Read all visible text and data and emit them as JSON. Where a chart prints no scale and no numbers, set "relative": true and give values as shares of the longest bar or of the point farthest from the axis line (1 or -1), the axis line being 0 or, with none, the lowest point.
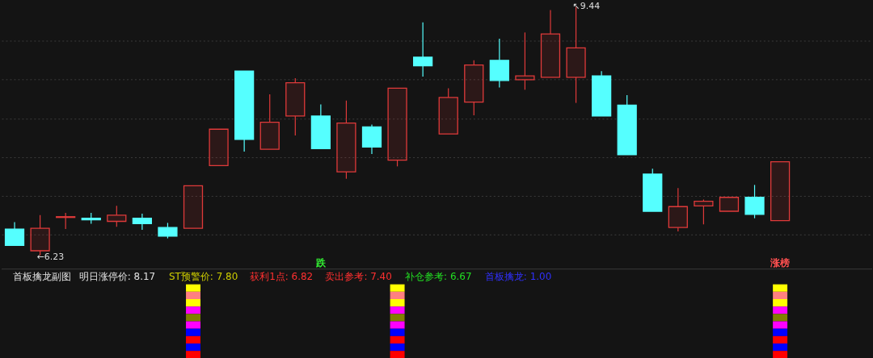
{
  "chart_data": [
    {
      "type": "candlestick",
      "categories": [
        null,
        null,
        null,
        null,
        null,
        null,
        null,
        null,
        null,
        null,
        null,
        null,
        null,
        null,
        null,
        null,
        null,
        null,
        null,
        null,
        null,
        null,
        null,
        null,
        null,
        null,
        null,
        null,
        null,
        null,
        null
      ],
      "ohlc": [
        [
          6.57,
          6.66,
          6.36,
          6.36
        ],
        [
          6.29,
          6.75,
          6.23,
          6.58
        ],
        [
          6.72,
          6.78,
          6.57,
          6.73
        ],
        [
          6.71,
          6.78,
          6.64,
          6.69
        ],
        [
          6.67,
          6.87,
          6.6,
          6.75
        ],
        [
          6.71,
          6.77,
          6.56,
          6.64
        ],
        [
          6.59,
          6.65,
          6.45,
          6.48
        ],
        [
          6.58,
          7.13,
          6.58,
          7.13
        ],
        [
          7.39,
          7.86,
          7.39,
          7.86
        ],
        [
          8.61,
          8.61,
          7.57,
          7.73
        ],
        [
          7.6,
          8.31,
          7.6,
          7.95
        ],
        [
          8.03,
          8.52,
          7.78,
          8.46
        ],
        [
          8.03,
          8.18,
          7.61,
          7.61
        ],
        [
          7.31,
          8.23,
          7.22,
          7.94
        ],
        [
          7.89,
          7.92,
          7.54,
          7.63
        ],
        [
          7.46,
          8.39,
          7.38,
          8.39
        ],
        [
          8.79,
          9.24,
          8.54,
          8.68
        ],
        [
          7.8,
          8.39,
          7.8,
          8.27
        ],
        [
          8.21,
          8.75,
          8.04,
          8.69
        ],
        [
          8.75,
          9.03,
          8.4,
          8.49
        ],
        [
          8.5,
          9.11,
          8.37,
          8.55
        ],
        [
          8.53,
          9.4,
          8.53,
          9.09
        ],
        [
          8.53,
          9.44,
          8.2,
          8.91
        ],
        [
          8.55,
          8.61,
          8.03,
          8.03
        ],
        [
          8.17,
          8.3,
          7.53,
          7.53
        ],
        [
          7.28,
          7.35,
          6.8,
          6.8
        ],
        [
          6.59,
          7.1,
          6.54,
          6.86
        ],
        [
          6.87,
          6.95,
          6.63,
          6.93
        ],
        [
          6.8,
          6.98,
          6.8,
          6.98
        ],
        [
          6.98,
          7.14,
          6.71,
          6.76
        ],
        [
          6.68,
          7.44,
          6.68,
          7.44
        ]
      ],
      "colors": [
        "#55ffff",
        "#e03a3a",
        "#e03a3a",
        "#55ffff",
        "#e03a3a",
        "#55ffff",
        "#55ffff",
        "#e03a3a",
        "#e03a3a",
        "#55ffff",
        "#e03a3a",
        "#e03a3a",
        "#55ffff",
        "#e03a3a",
        "#55ffff",
        "#e03a3a",
        "#55ffff",
        "#e03a3a",
        "#e03a3a",
        "#55ffff",
        "#e03a3a",
        "#e03a3a",
        "#e03a3a",
        "#55ffff",
        "#55ffff",
        "#55ffff",
        "#e03a3a",
        "#e03a3a",
        "#e03a3a",
        "#55ffff",
        "#e03a3a"
      ],
      "yticks": [
        {
          "value": 6.5,
          "label": null
        },
        {
          "value": 7.0,
          "label": null
        },
        {
          "value": 7.5,
          "label": null
        },
        {
          "value": 8.0,
          "label": null
        },
        {
          "value": 8.5,
          "label": null
        },
        {
          "value": 9.0,
          "label": null
        }
      ],
      "grid": "y",
      "annotations": [
        "←6.23",
        "↖9.44",
        "跌",
        "涨榜"
      ]
    },
    {
      "type": "bar",
      "stacked": true,
      "relative": true,
      "title": "首板擒龙副图",
      "categories": [
        null,
        null,
        null,
        null,
        null,
        null,
        null,
        null,
        null,
        null,
        null,
        null,
        null,
        null,
        null,
        null,
        null,
        null,
        null,
        null,
        null,
        null,
        null,
        null,
        null,
        null,
        null,
        null,
        null,
        null,
        null
      ],
      "annotations": [
        "明日涨停价: 8.17",
        "ST预警价: 7.80",
        "获利1点: 6.82",
        "卖出参考: 7.40",
        "补仓参考: 6.67",
        "首板擒龙: 1.00"
      ],
      "series": [
        {
          "color": "#ffff00",
          "values": [
            null,
            null,
            null,
            null,
            null,
            null,
            null,
            0.1,
            null,
            null,
            null,
            null,
            null,
            null,
            null,
            0.1,
            null,
            null,
            null,
            null,
            null,
            null,
            null,
            null,
            null,
            null,
            null,
            null,
            null,
            null,
            0.1
          ]
        },
        {
          "color": "#ff8080",
          "values": [
            null,
            null,
            null,
            null,
            null,
            null,
            null,
            0.1,
            null,
            null,
            null,
            null,
            null,
            null,
            null,
            0.1,
            null,
            null,
            null,
            null,
            null,
            null,
            null,
            null,
            null,
            null,
            null,
            null,
            null,
            null,
            0.1
          ]
        },
        {
          "color": "#ffff00",
          "values": [
            null,
            null,
            null,
            null,
            null,
            null,
            null,
            0.1,
            null,
            null,
            null,
            null,
            null,
            null,
            null,
            0.1,
            null,
            null,
            null,
            null,
            null,
            null,
            null,
            null,
            null,
            null,
            null,
            null,
            null,
            null,
            0.1
          ]
        },
        {
          "color": "#ff00ff",
          "values": [
            null,
            null,
            null,
            null,
            null,
            null,
            null,
            0.1,
            null,
            null,
            null,
            null,
            null,
            null,
            null,
            0.1,
            null,
            null,
            null,
            null,
            null,
            null,
            null,
            null,
            null,
            null,
            null,
            null,
            null,
            null,
            0.1
          ]
        },
        {
          "color": "#808000",
          "values": [
            null,
            null,
            null,
            null,
            null,
            null,
            null,
            0.1,
            null,
            null,
            null,
            null,
            null,
            null,
            null,
            0.1,
            null,
            null,
            null,
            null,
            null,
            null,
            null,
            null,
            null,
            null,
            null,
            null,
            null,
            null,
            0.1
          ]
        },
        {
          "color": "#ff00ff",
          "values": [
            null,
            null,
            null,
            null,
            null,
            null,
            null,
            0.1,
            null,
            null,
            null,
            null,
            null,
            null,
            null,
            0.1,
            null,
            null,
            null,
            null,
            null,
            null,
            null,
            null,
            null,
            null,
            null,
            null,
            null,
            null,
            0.1
          ]
        },
        {
          "color": "#0000ff",
          "values": [
            null,
            null,
            null,
            null,
            null,
            null,
            null,
            0.1,
            null,
            null,
            null,
            null,
            null,
            null,
            null,
            0.1,
            null,
            null,
            null,
            null,
            null,
            null,
            null,
            null,
            null,
            null,
            null,
            null,
            null,
            null,
            0.1
          ]
        },
        {
          "color": "#ff0000",
          "values": [
            null,
            null,
            null,
            null,
            null,
            null,
            null,
            0.1,
            null,
            null,
            null,
            null,
            null,
            null,
            null,
            0.1,
            null,
            null,
            null,
            null,
            null,
            null,
            null,
            null,
            null,
            null,
            null,
            null,
            null,
            null,
            0.1
          ]
        },
        {
          "color": "#0000ff",
          "values": [
            null,
            null,
            null,
            null,
            null,
            null,
            null,
            0.1,
            null,
            null,
            null,
            null,
            null,
            null,
            null,
            0.1,
            null,
            null,
            null,
            null,
            null,
            null,
            null,
            null,
            null,
            null,
            null,
            null,
            null,
            null,
            0.1
          ]
        },
        {
          "color": "#ff0000",
          "values": [
            null,
            null,
            null,
            null,
            null,
            null,
            null,
            0.1,
            null,
            null,
            null,
            null,
            null,
            null,
            null,
            0.1,
            null,
            null,
            null,
            null,
            null,
            null,
            null,
            null,
            null,
            null,
            null,
            null,
            null,
            null,
            0.1
          ]
        }
      ]
    }
  ]
}
